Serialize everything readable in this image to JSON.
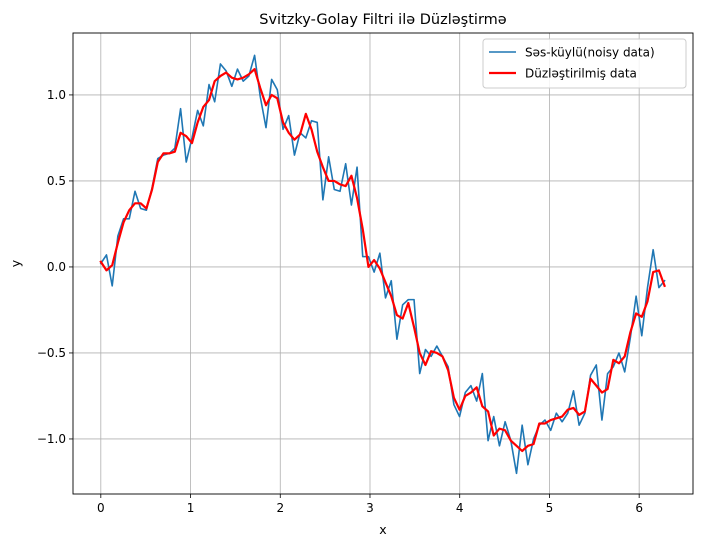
{
  "chart_data": {
    "type": "line",
    "title": "Svitzky-Golay Filtri ilə Düzləştirmə",
    "xlabel": "x",
    "ylabel": "y",
    "xlim": [
      -0.31,
      6.6
    ],
    "ylim": [
      -1.32,
      1.36
    ],
    "xticks": [
      0,
      1,
      2,
      3,
      4,
      5,
      6
    ],
    "yticks": [
      -1.0,
      -0.5,
      0.0,
      0.5,
      1.0
    ],
    "xtick_labels": [
      "0",
      "1",
      "2",
      "3",
      "4",
      "5",
      "6"
    ],
    "ytick_labels": [
      "−1.0",
      "−0.5",
      "0.0",
      "0.5",
      "1.0"
    ],
    "grid": true,
    "legend": "top-right",
    "series": [
      {
        "name": "Səs-küylü(noisy data)",
        "color": "#1f77b4",
        "linewidth": 1.6,
        "x": [
          0.0,
          0.063,
          0.127,
          0.19,
          0.254,
          0.317,
          0.381,
          0.444,
          0.508,
          0.571,
          0.635,
          0.698,
          0.762,
          0.825,
          0.889,
          0.952,
          1.016,
          1.079,
          1.142,
          1.206,
          1.269,
          1.333,
          1.396,
          1.46,
          1.523,
          1.587,
          1.65,
          1.714,
          1.777,
          1.841,
          1.904,
          1.967,
          2.031,
          2.094,
          2.158,
          2.221,
          2.285,
          2.348,
          2.412,
          2.475,
          2.539,
          2.602,
          2.666,
          2.729,
          2.793,
          2.856,
          2.919,
          2.983,
          3.046,
          3.11,
          3.173,
          3.237,
          3.3,
          3.364,
          3.427,
          3.491,
          3.554,
          3.618,
          3.681,
          3.745,
          3.808,
          3.871,
          3.935,
          3.998,
          4.062,
          4.125,
          4.189,
          4.252,
          4.316,
          4.379,
          4.443,
          4.506,
          4.57,
          4.633,
          4.696,
          4.76,
          4.823,
          4.887,
          4.95,
          5.014,
          5.077,
          5.141,
          5.204,
          5.268,
          5.331,
          5.395,
          5.458,
          5.522,
          5.585,
          5.648,
          5.712,
          5.775,
          5.839,
          5.902,
          5.966,
          6.029,
          6.093,
          6.156,
          6.22,
          6.283
        ],
        "y": [
          0.02,
          0.07,
          -0.11,
          0.18,
          0.28,
          0.28,
          0.44,
          0.34,
          0.33,
          0.46,
          0.63,
          0.65,
          0.66,
          0.69,
          0.92,
          0.61,
          0.75,
          0.91,
          0.82,
          1.06,
          0.96,
          1.18,
          1.14,
          1.05,
          1.15,
          1.08,
          1.11,
          1.23,
          0.99,
          0.81,
          1.09,
          1.03,
          0.8,
          0.88,
          0.65,
          0.78,
          0.75,
          0.85,
          0.84,
          0.39,
          0.64,
          0.45,
          0.44,
          0.6,
          0.36,
          0.58,
          0.06,
          0.06,
          -0.03,
          0.08,
          -0.18,
          -0.08,
          -0.42,
          -0.22,
          -0.19,
          -0.19,
          -0.62,
          -0.48,
          -0.52,
          -0.46,
          -0.52,
          -0.58,
          -0.8,
          -0.87,
          -0.73,
          -0.69,
          -0.78,
          -0.62,
          -1.01,
          -0.87,
          -1.04,
          -0.9,
          -1.01,
          -1.2,
          -0.92,
          -1.15,
          -1.0,
          -0.92,
          -0.89,
          -0.95,
          -0.85,
          -0.9,
          -0.85,
          -0.72,
          -0.92,
          -0.85,
          -0.63,
          -0.57,
          -0.89,
          -0.62,
          -0.58,
          -0.5,
          -0.61,
          -0.41,
          -0.17,
          -0.4,
          -0.12,
          0.1,
          -0.12,
          -0.08
        ]
      },
      {
        "name": "Düzləştirilmiş data",
        "color": "#ff0000",
        "linewidth": 2.2,
        "x": [
          0.0,
          0.063,
          0.127,
          0.19,
          0.254,
          0.317,
          0.381,
          0.444,
          0.508,
          0.571,
          0.635,
          0.698,
          0.762,
          0.825,
          0.889,
          0.952,
          1.016,
          1.079,
          1.142,
          1.206,
          1.269,
          1.333,
          1.396,
          1.46,
          1.523,
          1.587,
          1.65,
          1.714,
          1.777,
          1.841,
          1.904,
          1.967,
          2.031,
          2.094,
          2.158,
          2.221,
          2.285,
          2.348,
          2.412,
          2.475,
          2.539,
          2.602,
          2.666,
          2.729,
          2.793,
          2.856,
          2.919,
          2.983,
          3.046,
          3.11,
          3.173,
          3.237,
          3.3,
          3.364,
          3.427,
          3.491,
          3.554,
          3.618,
          3.681,
          3.745,
          3.808,
          3.871,
          3.935,
          3.998,
          4.062,
          4.125,
          4.189,
          4.252,
          4.316,
          4.379,
          4.443,
          4.506,
          4.57,
          4.633,
          4.696,
          4.76,
          4.823,
          4.887,
          4.95,
          5.014,
          5.077,
          5.141,
          5.204,
          5.268,
          5.331,
          5.395,
          5.458,
          5.522,
          5.585,
          5.648,
          5.712,
          5.775,
          5.839,
          5.902,
          5.966,
          6.029,
          6.093,
          6.156,
          6.22,
          6.283
        ],
        "y": [
          0.03,
          -0.02,
          0.01,
          0.14,
          0.26,
          0.33,
          0.37,
          0.37,
          0.34,
          0.45,
          0.61,
          0.66,
          0.66,
          0.67,
          0.78,
          0.76,
          0.72,
          0.84,
          0.93,
          0.97,
          1.08,
          1.11,
          1.13,
          1.1,
          1.09,
          1.1,
          1.12,
          1.15,
          1.04,
          0.94,
          1.0,
          0.98,
          0.84,
          0.78,
          0.74,
          0.77,
          0.89,
          0.8,
          0.67,
          0.58,
          0.5,
          0.5,
          0.48,
          0.47,
          0.53,
          0.4,
          0.22,
          0.0,
          0.04,
          -0.01,
          -0.09,
          -0.17,
          -0.28,
          -0.3,
          -0.21,
          -0.35,
          -0.5,
          -0.57,
          -0.49,
          -0.5,
          -0.52,
          -0.6,
          -0.76,
          -0.83,
          -0.75,
          -0.73,
          -0.7,
          -0.81,
          -0.84,
          -0.98,
          -0.94,
          -0.95,
          -1.01,
          -1.04,
          -1.07,
          -1.04,
          -1.03,
          -0.91,
          -0.91,
          -0.89,
          -0.88,
          -0.87,
          -0.83,
          -0.82,
          -0.86,
          -0.84,
          -0.65,
          -0.69,
          -0.73,
          -0.71,
          -0.54,
          -0.56,
          -0.52,
          -0.38,
          -0.27,
          -0.29,
          -0.2,
          -0.03,
          -0.02,
          -0.11
        ]
      }
    ]
  }
}
